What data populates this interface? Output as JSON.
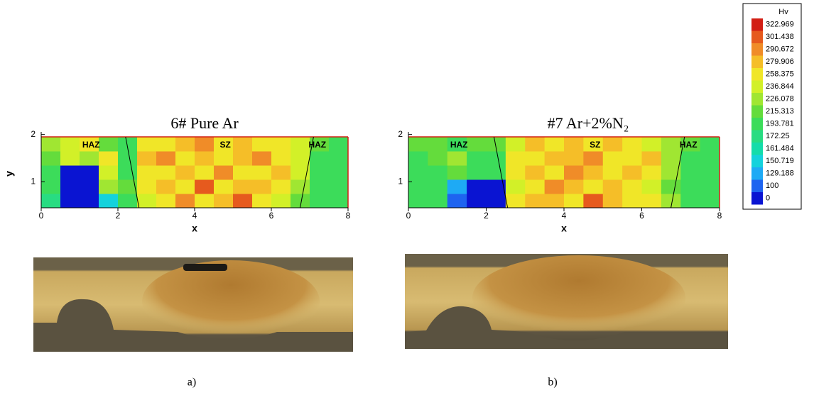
{
  "chart_data": [
    {
      "type": "contour",
      "title": "6# Pure Ar",
      "xlabel": "x",
      "ylabel": "y",
      "xlim": [
        0,
        8
      ],
      "ylim": [
        0.45,
        2.3
      ],
      "xticks": [
        0,
        2,
        4,
        6,
        8
      ],
      "yticks": [
        1,
        2
      ],
      "annotations": [
        "HAZ",
        "SZ",
        "HAZ"
      ],
      "caption": "a)",
      "x": [
        0.25,
        0.75,
        1.25,
        1.75,
        2.25,
        2.75,
        3.25,
        3.75,
        4.25,
        4.75,
        5.25,
        5.75,
        6.25,
        6.75,
        7.25,
        7.75
      ],
      "y": [
        0.6,
        0.9,
        1.2,
        1.5,
        1.8
      ],
      "z": [
        [
          190,
          90,
          90,
          160,
          210,
          250,
          270,
          300,
          260,
          280,
          310,
          270,
          250,
          220,
          200,
          195
        ],
        [
          200,
          90,
          90,
          230,
          220,
          260,
          280,
          270,
          310,
          260,
          290,
          280,
          260,
          230,
          205,
          200
        ],
        [
          210,
          95,
          95,
          250,
          215,
          270,
          260,
          290,
          270,
          300,
          270,
          260,
          280,
          240,
          210,
          205
        ],
        [
          220,
          240,
          230,
          260,
          210,
          280,
          300,
          260,
          280,
          270,
          290,
          300,
          270,
          250,
          215,
          210
        ],
        [
          230,
          250,
          260,
          220,
          215,
          260,
          270,
          290,
          300,
          260,
          280,
          270,
          260,
          240,
          220,
          215
        ]
      ]
    },
    {
      "type": "contour",
      "title": "#7 Ar+2%N₂",
      "xlabel": "x",
      "ylabel": "y",
      "xlim": [
        0,
        8
      ],
      "ylim": [
        0.45,
        2.3
      ],
      "xticks": [
        0,
        2,
        4,
        6,
        8
      ],
      "yticks": [
        1,
        2
      ],
      "annotations": [
        "HAZ",
        "SZ",
        "HAZ"
      ],
      "caption": "b)",
      "x": [
        0.25,
        0.75,
        1.25,
        1.75,
        2.25,
        2.75,
        3.25,
        3.75,
        4.25,
        4.75,
        5.25,
        5.75,
        6.25,
        6.75,
        7.25,
        7.75
      ],
      "y": [
        0.6,
        0.9,
        1.2,
        1.5,
        1.8
      ],
      "z": [
        [
          200,
          195,
          120,
          90,
          90,
          260,
          280,
          290,
          270,
          310,
          280,
          260,
          270,
          230,
          200,
          200
        ],
        [
          205,
          200,
          130,
          90,
          90,
          250,
          270,
          300,
          280,
          260,
          290,
          270,
          250,
          225,
          205,
          200
        ],
        [
          210,
          210,
          220,
          200,
          210,
          260,
          290,
          270,
          300,
          280,
          270,
          290,
          260,
          230,
          210,
          205
        ],
        [
          215,
          220,
          230,
          210,
          215,
          270,
          260,
          290,
          280,
          300,
          270,
          260,
          280,
          235,
          215,
          210
        ],
        [
          220,
          225,
          215,
          220,
          220,
          250,
          280,
          270,
          290,
          270,
          280,
          260,
          250,
          230,
          220,
          215
        ]
      ]
    },
    {
      "type": "colorbar",
      "title": "Hv",
      "levels": [
        0,
        100,
        129.188,
        150.719,
        161.484,
        172.25,
        193.781,
        215.313,
        226.078,
        236.844,
        258.375,
        279.906,
        290.672,
        301.438,
        322.969
      ],
      "colors": [
        "#0a14d2",
        "#1e64f0",
        "#1eaaf5",
        "#14d2dc",
        "#14dcaa",
        "#28dc82",
        "#3cdc5a",
        "#64dc3c",
        "#a0e632",
        "#d2f028",
        "#f0e628",
        "#f5be28",
        "#f08c28",
        "#e65a1e",
        "#d21e14"
      ]
    }
  ]
}
